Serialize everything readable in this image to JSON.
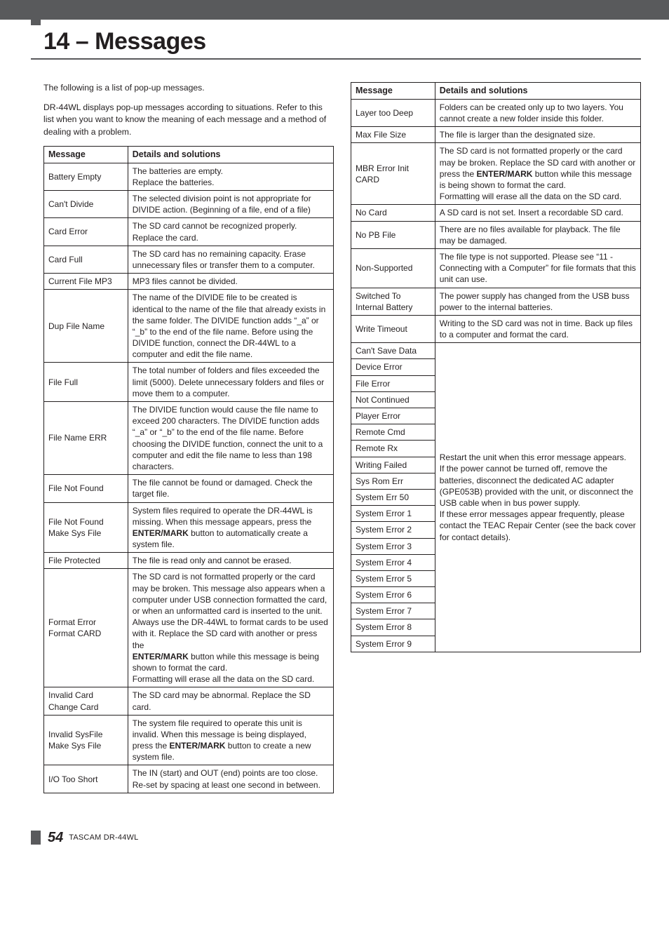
{
  "chapter": "14 – Messages",
  "intro_lines": [
    "The following is a list of pop-up messages.",
    "DR-44WL displays pop-up messages according to situations. Refer to this list when you want to know the meaning of each message and a method of dealing with a problem."
  ],
  "headers": {
    "col1": "Message",
    "col2": "Details and solutions"
  },
  "left_rows": [
    {
      "msg": "Battery Empty",
      "det": "The batteries are empty.<br>Replace the batteries."
    },
    {
      "msg": "Can't Divide",
      "det": "The selected division point is not appropriate for DIVIDE action. (Beginning of a file, end of a file)"
    },
    {
      "msg": "Card Error",
      "det": "The SD card cannot be recognized properly. Replace the card."
    },
    {
      "msg": "Card Full",
      "det": "The SD card has no remaining capacity. Erase unnecessary files or transfer them to a computer."
    },
    {
      "msg": "Current File MP3",
      "det": "MP3 files cannot be divided."
    },
    {
      "msg": "Dup File Name",
      "det": "The name of the DIVIDE file to be created is identical to the name of the file that already exists in the same folder. The DIVIDE function adds “_a” or “_b” to the end of the file name. Before using the DIVIDE function, connect the DR-44WL to a computer and edit the file name."
    },
    {
      "msg": "File Full",
      "det": "The total number of folders and files exceeded the limit (5000). Delete unnecessary folders and files or move them to a computer."
    },
    {
      "msg": "File Name ERR",
      "det": "The DIVIDE function would cause the file name to exceed 200 characters. The DIVIDE function adds “_a” or “_b” to the end of the file name. Before choosing the DIVIDE function, connect the unit to a computer and edit the file name to less than 198 characters."
    },
    {
      "msg": "File Not Found",
      "det": "The file cannot be found or damaged. Check the target file."
    },
    {
      "msg": "File Not Found<br>Make Sys File",
      "det": "System files required to operate the DR-44WL is missing. When this message appears, press the <b>ENTER/MARK</b> button to automatically create a system file."
    },
    {
      "msg": "File Protected",
      "det": "The file is read only and cannot be erased."
    },
    {
      "msg": "Format Error<br>Format CARD",
      "det": "The SD card is not formatted properly or the card may be broken. This message also appears when a computer under USB connection formatted the card, or when an unformatted card is inserted to the unit.<br>Always use the DR-44WL to format cards to be used with it. Replace the SD card with another or press the<br><b>ENTER/MARK</b> button while this message is being shown to format the card.<br>Formatting will erase all the data on the SD card."
    },
    {
      "msg": "Invalid Card<br>Change Card",
      "det": "The SD card may be abnormal. Replace the SD card."
    },
    {
      "msg": "Invalid SysFile<br>Make Sys File",
      "det": "The system file required to operate this unit is invalid. When this message is being displayed, press the <b>ENTER/MARK</b> button to create a new system file."
    },
    {
      "msg": "I/O Too Short",
      "det": "The IN (start) and OUT (end) points are too close. Re-set by spacing at least one second in between."
    }
  ],
  "right_rows_top": [
    {
      "msg": "Layer too Deep",
      "det": "Folders can be created only up to two layers. You cannot create a new folder inside this folder."
    },
    {
      "msg": "Max File Size",
      "det": "The file is larger than the designated size."
    },
    {
      "msg": "MBR Error Init<br>CARD",
      "det": "The SD card is not formatted properly or the card may be broken. Replace the SD card with another or press the <b>ENTER/MARK</b> button while this message is being shown to format the card.<br>Formatting will erase all the data on the SD card."
    },
    {
      "msg": "No Card",
      "det": "A SD card is not set. Insert a recordable SD card."
    },
    {
      "msg": "No PB File",
      "det": "There are no files available for playback. The file may be damaged."
    },
    {
      "msg": "Non-Supported",
      "det": "The file type is not supported. Please see “11 - Connecting with a Computer” for file formats that this unit can use."
    },
    {
      "msg": "Switched To<br>Internal Battery",
      "det": "The power supply has changed from the USB buss power to the internal batteries."
    },
    {
      "msg": "Write Timeout",
      "det": "Writing to the SD card was not in time. Back up files to a computer and format the card."
    }
  ],
  "merged_group": {
    "messages": [
      "Can't Save Data",
      "Device Error",
      "File Error",
      "Not Continued",
      "Player Error",
      "Remote Cmd",
      "Remote Rx",
      "Writing Failed",
      "Sys Rom Err",
      "System Err 50",
      "System Error 1",
      "System Error 2",
      "System Error 3",
      "System Error 4",
      "System Error 5",
      "System Error 6",
      "System Error 7",
      "System Error 8",
      "System Error 9"
    ],
    "detail": "Restart the unit when this error message appears.<br>If the power cannot be turned off, remove the batteries, disconnect the dedicated AC adapter (GPE053B) provided with the unit, or disconnect the USB cable when in bus power supply.<br>If these error messages appear frequently, please contact the TEAC Repair Center (see the back cover for contact details)."
  },
  "footer": {
    "page": "54",
    "model": "TASCAM DR-44WL"
  }
}
